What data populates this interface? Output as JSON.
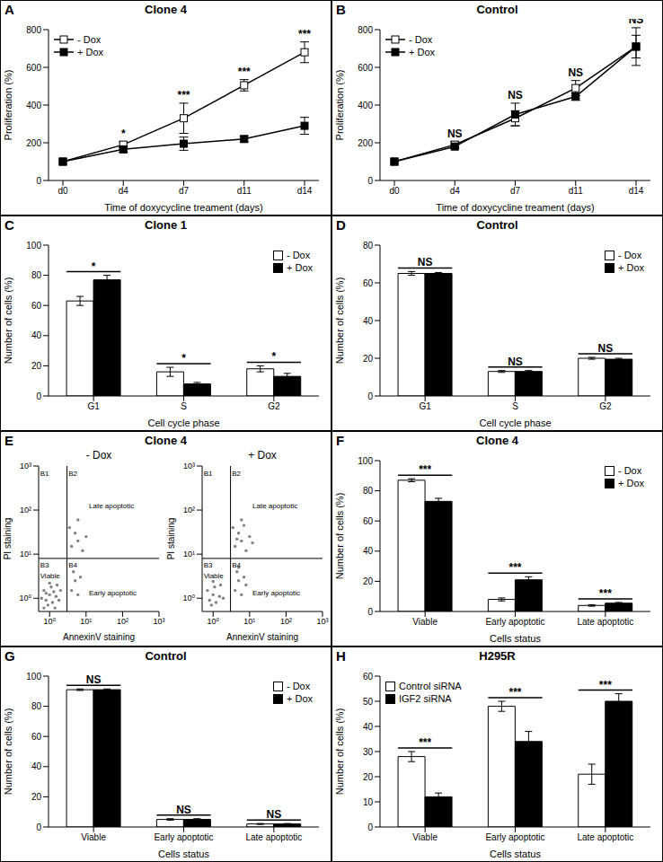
{
  "chart_data": [
    {
      "panel": "A",
      "type": "line",
      "title": "Clone 4",
      "x_label": "Time of doxycycline treament (days)",
      "y_label": "Proliferation (%)",
      "categories": [
        "d0",
        "d4",
        "d7",
        "d11",
        "d14"
      ],
      "ylim": [
        0,
        800
      ],
      "yticks": [
        0,
        200,
        400,
        600,
        800
      ],
      "legend": "top-left",
      "series": [
        {
          "name": "- Dox",
          "color": "#000000",
          "marker": "open_square",
          "values": [
            100,
            190,
            330,
            505,
            680
          ],
          "errors": [
            0,
            15,
            80,
            30,
            55
          ]
        },
        {
          "name": "+ Dox",
          "color": "#000000",
          "marker": "square",
          "values": [
            100,
            165,
            195,
            220,
            290
          ],
          "errors": [
            0,
            15,
            35,
            15,
            45
          ]
        }
      ],
      "significance": [
        null,
        "*",
        "***",
        "***",
        "***"
      ]
    },
    {
      "panel": "B",
      "type": "line",
      "title": "Control",
      "x_label": "Time of doxycycline treament (days)",
      "y_label": "Proliferation (%)",
      "categories": [
        "d0",
        "d4",
        "d7",
        "d11",
        "d14"
      ],
      "ylim": [
        0,
        800
      ],
      "yticks": [
        0,
        200,
        400,
        600,
        800
      ],
      "legend": "top-left",
      "series": [
        {
          "name": "- Dox",
          "color": "#000000",
          "marker": "open_square",
          "values": [
            100,
            190,
            330,
            490,
            710
          ],
          "errors": [
            0,
            15,
            40,
            40,
            60
          ]
        },
        {
          "name": "+ Dox",
          "color": "#000000",
          "marker": "square",
          "values": [
            100,
            180,
            350,
            445,
            710
          ],
          "errors": [
            0,
            10,
            60,
            20,
            100
          ]
        }
      ],
      "significance": [
        null,
        "NS",
        "NS",
        "NS",
        "NS"
      ]
    },
    {
      "panel": "C",
      "type": "bar",
      "title": "Clone 1",
      "x_label": "Cell cycle phase",
      "y_label": "Number of cells (%)",
      "categories": [
        "G1",
        "S",
        "G2"
      ],
      "ylim": [
        0,
        100
      ],
      "yticks": [
        0,
        20,
        40,
        60,
        80,
        100
      ],
      "legend": "top-right",
      "series": [
        {
          "name": "- Dox",
          "color": "#ffffff",
          "values": [
            63,
            16,
            18
          ],
          "errors": [
            3,
            3,
            2
          ]
        },
        {
          "name": "+ Dox",
          "color": "#000000",
          "values": [
            77,
            8,
            13
          ],
          "errors": [
            3,
            1,
            2
          ]
        }
      ],
      "significance": [
        "*",
        "*",
        "*"
      ]
    },
    {
      "panel": "D",
      "type": "bar",
      "title": "Control",
      "x_label": "Cell cycle phase",
      "y_label": "Number of cells (%)",
      "categories": [
        "G1",
        "S",
        "G2"
      ],
      "ylim": [
        0,
        80
      ],
      "yticks": [
        0,
        20,
        40,
        60,
        80
      ],
      "legend": "top-right",
      "series": [
        {
          "name": "- Dox",
          "color": "#ffffff",
          "values": [
            65,
            13,
            20
          ],
          "errors": [
            1,
            0.5,
            0.5
          ]
        },
        {
          "name": "+ Dox",
          "color": "#000000",
          "values": [
            65,
            13,
            19.5
          ],
          "errors": [
            0.5,
            0.5,
            0.5
          ]
        }
      ],
      "significance": [
        "NS",
        "NS",
        "NS"
      ]
    },
    {
      "panel": "E",
      "type": "scatter",
      "title": "Clone 4",
      "subtitle": "- Dox",
      "x_label": "AnnexinV staining",
      "y_label": "PI staining",
      "log": true,
      "color": "#808080",
      "xlim": [
        0.5,
        1000
      ],
      "ylim": [
        0.5,
        1000
      ],
      "xticks": [
        {
          "value": 1,
          "label": "10⁰"
        },
        {
          "value": 10,
          "label": "10¹"
        },
        {
          "value": 100,
          "label": "10²"
        },
        {
          "value": 1000,
          "label": "10³"
        }
      ],
      "yticks": [
        {
          "value": 1,
          "label": "10⁰"
        },
        {
          "value": 10,
          "label": "10¹"
        },
        {
          "value": 100,
          "label": "10²"
        },
        {
          "value": 1000,
          "label": "10³"
        }
      ],
      "quadrant_x": 3,
      "quadrant_y": 8,
      "x": [
        0.8,
        1,
        1.2,
        0.7,
        1.5,
        0.9,
        1.1,
        1.3,
        0.6,
        1.8,
        1,
        1.4,
        0.8,
        2,
        1.6,
        0.7,
        4,
        5,
        6,
        4.5,
        7,
        4,
        6,
        5,
        8,
        10,
        3.5,
        6
      ],
      "y": [
        0.9,
        1.2,
        0.8,
        1.5,
        1.1,
        0.7,
        1.8,
        1.4,
        1,
        0.9,
        2.2,
        0.6,
        1.3,
        1.5,
        2,
        0.6,
        1.5,
        2.5,
        1.2,
        4,
        3,
        15,
        20,
        30,
        12,
        25,
        40,
        60
      ],
      "annotations": [
        {
          "text": "B1",
          "x": 0.55,
          "y": 650
        },
        {
          "text": "B2",
          "x": 3.3,
          "y": 650
        },
        {
          "text": "Late apoptotic",
          "x": 12,
          "y": 120
        },
        {
          "text": "B3",
          "x": 0.55,
          "y": 5.5
        },
        {
          "text": "B4",
          "x": 3.3,
          "y": 5.5
        },
        {
          "text": "Viable",
          "x": 0.55,
          "y": 3.2
        },
        {
          "text": "Early apoptotic",
          "x": 12,
          "y": 1.3
        }
      ]
    },
    {
      "type": "scatter",
      "subtitle": "+ Dox",
      "x_label": "AnnexinV staining",
      "y_label": "PI staining",
      "log": true,
      "color": "#808080",
      "xlim": [
        0.5,
        1000
      ],
      "ylim": [
        0.5,
        1000
      ],
      "xticks": [
        {
          "value": 1,
          "label": "10⁰"
        },
        {
          "value": 10,
          "label": "10¹"
        },
        {
          "value": 100,
          "label": "10²"
        },
        {
          "value": 1000,
          "label": "10³"
        }
      ],
      "yticks": [
        {
          "value": 1,
          "label": "10⁰"
        },
        {
          "value": 10,
          "label": "10¹"
        },
        {
          "value": 100,
          "label": "10²"
        },
        {
          "value": 1000,
          "label": "10³"
        }
      ],
      "quadrant_x": 3,
      "quadrant_y": 8,
      "x": [
        0.8,
        1,
        1.2,
        0.7,
        1.5,
        1.1,
        0.9,
        1.6,
        1,
        1.9,
        4,
        5,
        6,
        4.5,
        7,
        5,
        8,
        4,
        6,
        5,
        8,
        10,
        3.5,
        6,
        12,
        7,
        4.5
      ],
      "y": [
        0.9,
        1.2,
        0.8,
        1.5,
        1.1,
        1.8,
        0.7,
        2,
        2.4,
        1,
        1.5,
        2.5,
        1.2,
        4,
        3,
        5,
        2,
        15,
        20,
        30,
        12,
        25,
        40,
        60,
        18,
        45,
        22
      ],
      "annotations": [
        {
          "text": "B1",
          "x": 0.55,
          "y": 650
        },
        {
          "text": "B2",
          "x": 3.3,
          "y": 650
        },
        {
          "text": "Late apoptotic",
          "x": 12,
          "y": 120
        },
        {
          "text": "B3",
          "x": 0.55,
          "y": 5.5
        },
        {
          "text": "B4",
          "x": 3.3,
          "y": 5.5
        },
        {
          "text": "Viable",
          "x": 0.55,
          "y": 3.2
        },
        {
          "text": "Early apoptotic",
          "x": 12,
          "y": 1.3
        }
      ]
    },
    {
      "panel": "F",
      "type": "bar",
      "title": "Clone 4",
      "x_label": "Cells status",
      "y_label": "Number of cells (%)",
      "categories": [
        "Viable",
        "Early apoptotic",
        "Late apoptotic"
      ],
      "ylim": [
        0,
        100
      ],
      "yticks": [
        0,
        20,
        40,
        60,
        80,
        100
      ],
      "legend": "top-right",
      "series": [
        {
          "name": "- Dox",
          "color": "#ffffff",
          "values": [
            87,
            8,
            4
          ],
          "errors": [
            1,
            1,
            0.5
          ]
        },
        {
          "name": "+ Dox",
          "color": "#000000",
          "values": [
            73,
            21,
            5.5
          ],
          "errors": [
            2,
            2,
            0.5
          ]
        }
      ],
      "significance": [
        "***",
        "***",
        "***"
      ]
    },
    {
      "panel": "G",
      "type": "bar",
      "title": "Control",
      "x_label": "Cells status",
      "y_label": "Number of cells (%)",
      "categories": [
        "Viable",
        "Early apoptotic",
        "Late apoptotic"
      ],
      "ylim": [
        0,
        100
      ],
      "yticks": [
        0,
        20,
        40,
        60,
        80,
        100
      ],
      "legend": "top-right",
      "series": [
        {
          "name": "- Dox",
          "color": "#ffffff",
          "values": [
            91,
            5,
            2
          ],
          "errors": [
            0.5,
            0.5,
            0.3
          ]
        },
        {
          "name": "+ Dox",
          "color": "#000000",
          "values": [
            91,
            5,
            2
          ],
          "errors": [
            0.5,
            0.5,
            0.3
          ]
        }
      ],
      "significance": [
        "NS",
        "NS",
        "NS"
      ]
    },
    {
      "panel": "H",
      "type": "bar",
      "title": "H295R",
      "x_label": "Cells status",
      "y_label": "Number of cells (%)",
      "categories": [
        "Viable",
        "Early apoptotic",
        "Late apoptotic"
      ],
      "ylim": [
        0,
        60
      ],
      "yticks": [
        0,
        10,
        20,
        30,
        40,
        50,
        60
      ],
      "legend": "top-left",
      "series": [
        {
          "name": "Control siRNA",
          "color": "#ffffff",
          "values": [
            28,
            48,
            21
          ],
          "errors": [
            2,
            2,
            4
          ]
        },
        {
          "name": "IGF2 siRNA",
          "color": "#000000",
          "values": [
            12,
            34,
            50
          ],
          "errors": [
            1.5,
            4,
            3
          ]
        }
      ],
      "significance": [
        "***",
        "***",
        "***"
      ]
    }
  ]
}
